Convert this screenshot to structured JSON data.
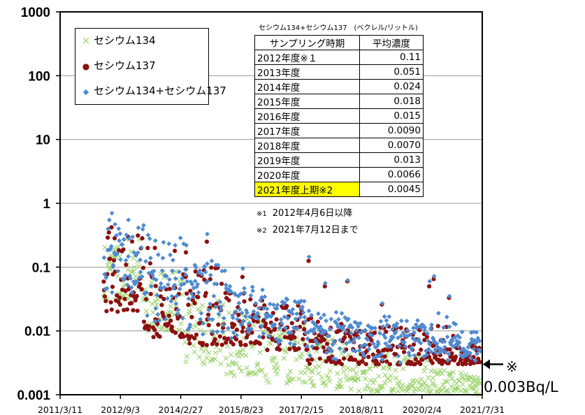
{
  "chart_data": {
    "type": "scatter",
    "yscale": "log",
    "ylim": [
      0.001,
      1000
    ],
    "xlim": [
      "2011-03-11",
      "2021-07-31"
    ],
    "grid": "horizontal",
    "yticks": [
      "1000",
      "100",
      "10",
      "1",
      "0.1",
      "0.01",
      "0.001"
    ],
    "xticks": [
      "2011/3/11",
      "2012/9/3",
      "2014/2/27",
      "2015/8/23",
      "2017/2/15",
      "2018/8/11",
      "2020/2/4",
      "2021/7/31"
    ],
    "legend_position": "top-left",
    "series": [
      {
        "name": "セシウム134",
        "marker": "x",
        "color": "#9bd36b"
      },
      {
        "name": "セシウム137",
        "marker": "circle",
        "color": "#8b1010"
      },
      {
        "name": "セシウム134+セシウム137",
        "marker": "diamond",
        "color": "#4f8ad0"
      }
    ],
    "table": {
      "title": "セシウム134+セシウム137　(ベクレル/リットル)",
      "headers": [
        "サンプリング時期",
        "平均濃度"
      ],
      "rows": [
        {
          "period": "2012年度※１",
          "value": "0.11"
        },
        {
          "period": "2013年度",
          "value": "0.051"
        },
        {
          "period": "2014年度",
          "value": "0.024"
        },
        {
          "period": "2015年度",
          "value": "0.018"
        },
        {
          "period": "2016年度",
          "value": "0.015"
        },
        {
          "period": "2017年度",
          "value": "0.0090"
        },
        {
          "period": "2018年度",
          "value": "0.0070"
        },
        {
          "period": "2019年度",
          "value": "0.013"
        },
        {
          "period": "2020年度",
          "value": "0.0066"
        },
        {
          "period": "2021年度上期※2",
          "value": "0.0045",
          "highlight": "#ffff00"
        }
      ]
    },
    "notes": [
      {
        "mark": "※1",
        "text": "2012年4月6日以降"
      },
      {
        "mark": "※2",
        "text": "2021年7月12日まで"
      }
    ],
    "annotation": {
      "mark": "※",
      "text": "0.003Bq/L",
      "arrow": "left",
      "y": 0.003
    },
    "scatter_bands": [
      {
        "x0": "2012-04-01",
        "x1": "2013-03-31",
        "c134": [
          0.03,
          0.3
        ],
        "c137": [
          0.02,
          0.42
        ],
        "sum": [
          0.04,
          0.7
        ],
        "n": 55
      },
      {
        "x0": "2013-04-01",
        "x1": "2014-03-31",
        "c134": [
          0.01,
          0.09
        ],
        "c137": [
          0.008,
          0.2
        ],
        "sum": [
          0.012,
          0.3
        ],
        "n": 55
      },
      {
        "x0": "2014-04-01",
        "x1": "2015-03-31",
        "c134": [
          0.003,
          0.03
        ],
        "c137": [
          0.006,
          0.1
        ],
        "sum": [
          0.008,
          0.12
        ],
        "n": 55
      },
      {
        "x0": "2015-04-01",
        "x1": "2016-03-31",
        "c134": [
          0.002,
          0.02
        ],
        "c137": [
          0.006,
          0.04
        ],
        "sum": [
          0.007,
          0.05
        ],
        "n": 55
      },
      {
        "x0": "2016-04-01",
        "x1": "2017-03-31",
        "c134": [
          0.0015,
          0.012
        ],
        "c137": [
          0.005,
          0.025
        ],
        "sum": [
          0.006,
          0.03
        ],
        "n": 55
      },
      {
        "x0": "2017-04-01",
        "x1": "2018-03-31",
        "c134": [
          0.0012,
          0.008
        ],
        "c137": [
          0.003,
          0.016
        ],
        "sum": [
          0.003,
          0.02
        ],
        "n": 55
      },
      {
        "x0": "2018-04-01",
        "x1": "2019-03-31",
        "c134": [
          0.0011,
          0.005
        ],
        "c137": [
          0.003,
          0.012
        ],
        "sum": [
          0.003,
          0.013
        ],
        "n": 55
      },
      {
        "x0": "2019-04-01",
        "x1": "2020-03-31",
        "c134": [
          0.0011,
          0.004
        ],
        "c137": [
          0.003,
          0.012
        ],
        "sum": [
          0.003,
          0.013
        ],
        "n": 55
      },
      {
        "x0": "2020-04-01",
        "x1": "2021-03-31",
        "c134": [
          0.0011,
          0.0025
        ],
        "c137": [
          0.003,
          0.012
        ],
        "sum": [
          0.003,
          0.013
        ],
        "n": 55
      },
      {
        "x0": "2021-04-01",
        "x1": "2021-07-12",
        "c134": [
          0.001,
          0.002
        ],
        "c137": [
          0.003,
          0.007
        ],
        "sum": [
          0.003,
          0.008
        ],
        "n": 20
      }
    ],
    "highlights": [
      {
        "x": "2012-06-15",
        "y137": 0.42,
        "ysum": 0.7
      },
      {
        "x": "2012-11-10",
        "y137": 0.3,
        "ysum": 0.55
      },
      {
        "x": "2013-07-10",
        "y137": 0.2,
        "ysum": 0.26
      },
      {
        "x": "2014-01-05",
        "y137": 0.18,
        "ysum": 0.22
      },
      {
        "x": "2014-04-15",
        "y137": 0.17,
        "ysum": 0.22
      },
      {
        "x": "2014-10-20",
        "y137": 0.25,
        "ysum": 0.33
      },
      {
        "x": "2015-09-05",
        "y137": 0.07,
        "ysum": 0.095
      },
      {
        "x": "2017-04-22",
        "y137": 0.125,
        "ysum": 0.145
      },
      {
        "x": "2017-09-15",
        "y137": 0.05,
        "ysum": 0.056
      },
      {
        "x": "2018-04-06",
        "y137": 0.06,
        "ysum": 0.062
      },
      {
        "x": "2019-02-10",
        "y137": 0.026,
        "ysum": 0.027
      },
      {
        "x": "2020-04-10",
        "y137": 0.05,
        "ysum": 0.06
      },
      {
        "x": "2020-05-20",
        "y137": 0.065,
        "ysum": 0.072
      },
      {
        "x": "2020-10-05",
        "y137": 0.033,
        "ysum": 0.035
      }
    ]
  }
}
